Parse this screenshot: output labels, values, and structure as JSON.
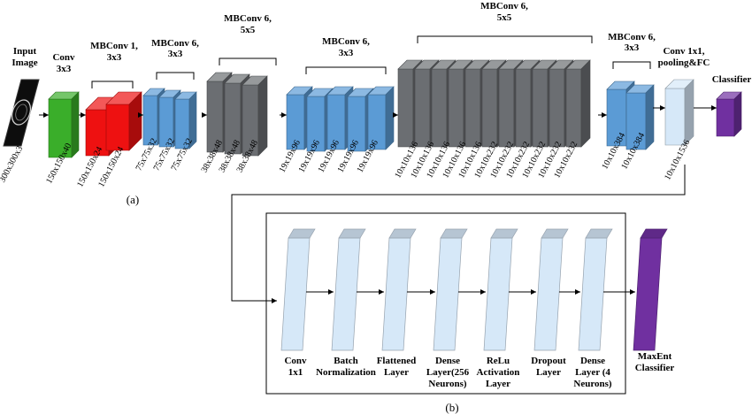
{
  "section_a": {
    "caption": "(a)",
    "input": {
      "title_line1": "Input",
      "title_line2": "Image",
      "dim": "300x300x3"
    },
    "conv": {
      "title_line1": "Conv",
      "title_line2": "3x3",
      "dim": "150x150x40"
    },
    "mb1": {
      "title_line1": "MBConv 1,",
      "title_line2": "3x3",
      "dims": [
        "150x150x24",
        "150x150x24"
      ]
    },
    "mb6a": {
      "title_line1": "MBConv 6,",
      "title_line2": "3x3",
      "dims": [
        "75x75x32",
        "75x75x32",
        "75x75x32"
      ]
    },
    "mb6b": {
      "title_line1": "MBConv 6,",
      "title_line2": "5x5",
      "dims": [
        "38x38x48",
        "38x38x48",
        "38x38x48"
      ]
    },
    "mb6c": {
      "title_line1": "MBConv 6,",
      "title_line2": "3x3",
      "dims": [
        "19x19x96",
        "19x19x96",
        "19x19x96",
        "19x19x96",
        "19x19x96"
      ]
    },
    "mb6d": {
      "title_line1": "MBConv 6,",
      "title_line2": "5x5",
      "dims": [
        "10x10x136",
        "10x10x136",
        "10x10x136",
        "10x10x136",
        "10x10x136",
        "10x10x232",
        "10x10x232",
        "10x10x232",
        "10x10x232",
        "10x10x232",
        "10x10x232"
      ]
    },
    "mb6e": {
      "title_line1": "MBConv 6,",
      "title_line2": "3x3",
      "dims": [
        "10x10x384",
        "10x10x384"
      ]
    },
    "conv1": {
      "title_line1": "Conv 1x1,",
      "title_line2": "pooling&FC",
      "dim": "10x10x1536"
    },
    "classifier": {
      "title": "Classifier"
    }
  },
  "section_b": {
    "caption": "(b)",
    "layers": [
      {
        "lines": [
          "Conv",
          "1x1"
        ]
      },
      {
        "lines": [
          "Batch",
          "Normalization"
        ]
      },
      {
        "lines": [
          "Flattened",
          "Layer"
        ]
      },
      {
        "lines": [
          "Dense",
          "Layer(256",
          "Neurons)"
        ]
      },
      {
        "lines": [
          "ReLu",
          "Activation",
          "Layer"
        ]
      },
      {
        "lines": [
          "Dropout",
          "Layer"
        ]
      },
      {
        "lines": [
          "Dense",
          "Layer (4",
          "Neurons)"
        ]
      }
    ],
    "output": {
      "lines": [
        "MaxEnt",
        "Classifier"
      ]
    }
  },
  "colors": {
    "green": "#3aae2a",
    "red": "#ee1111",
    "blue": "#5b9bd5",
    "gray": "#6b6e72",
    "lightblue": "#d6e8f8",
    "purple": "#7030a0"
  }
}
